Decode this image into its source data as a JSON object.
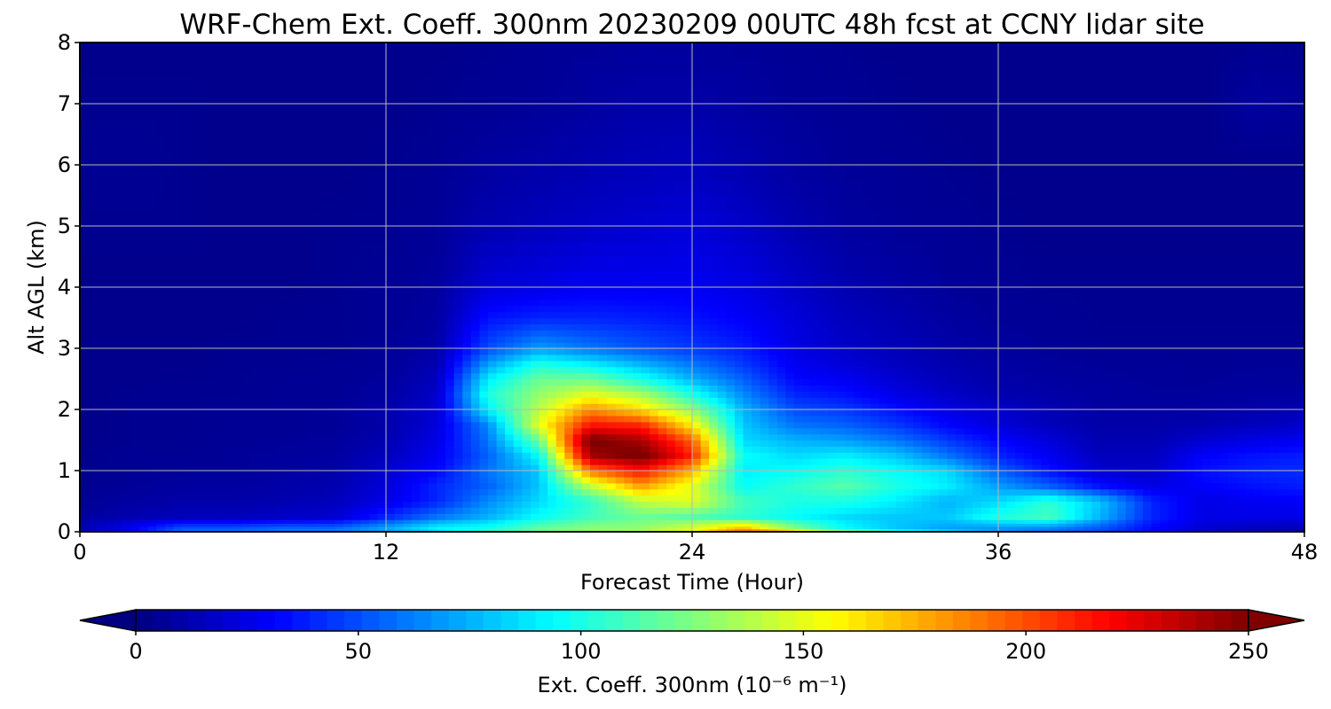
{
  "chart_data": {
    "type": "heatmap",
    "title": "WRF-Chem Ext. Coeff. 300nm  20230209 00UTC 48h fcst at CCNY lidar site",
    "xlabel": "Forecast Time (Hour)",
    "ylabel": "Alt AGL (km)",
    "xlim": [
      0,
      48
    ],
    "ylim": [
      0,
      8
    ],
    "x_ticks": [
      "0",
      "12",
      "24",
      "36",
      "48"
    ],
    "y_ticks": [
      "0",
      "1",
      "2",
      "3",
      "4",
      "5",
      "6",
      "7",
      "8"
    ],
    "grid": true,
    "colormap": "jet",
    "colorbar": {
      "label": "Ext. Coeff. 300nm  (10⁻⁶ m⁻¹)",
      "range": [
        0,
        250
      ],
      "ticks": [
        "0",
        "50",
        "100",
        "150",
        "200",
        "250"
      ],
      "extend": "both",
      "placement": "bottom"
    },
    "x_hours": [
      0,
      2,
      4,
      6,
      8,
      10,
      12,
      14,
      16,
      18,
      20,
      22,
      24,
      26,
      28,
      30,
      32,
      34,
      36,
      38,
      40,
      42,
      44,
      46,
      48
    ],
    "y_km": [
      0,
      0.05,
      0.25,
      0.5,
      0.75,
      1.0,
      1.25,
      1.5,
      1.75,
      2.0,
      2.25,
      2.5,
      2.75,
      3.0,
      3.5,
      4.0,
      5.0,
      6.0,
      7.0,
      8.0
    ],
    "values": [
      [
        15,
        20,
        60,
        60,
        60,
        60,
        60,
        70,
        110,
        120,
        130,
        150,
        160,
        215,
        235,
        185,
        135,
        110,
        80,
        60,
        50,
        35,
        20,
        15,
        10
      ],
      [
        12,
        30,
        55,
        55,
        60,
        60,
        75,
        95,
        100,
        120,
        130,
        130,
        150,
        180,
        130,
        95,
        80,
        70,
        65,
        60,
        50,
        32,
        20,
        15,
        12
      ],
      [
        8,
        12,
        15,
        15,
        18,
        20,
        40,
        60,
        75,
        95,
        110,
        120,
        115,
        105,
        95,
        85,
        80,
        80,
        100,
        110,
        75,
        40,
        25,
        25,
        25
      ],
      [
        5,
        8,
        10,
        10,
        12,
        15,
        25,
        40,
        65,
        85,
        105,
        140,
        150,
        110,
        100,
        100,
        90,
        75,
        85,
        105,
        80,
        40,
        25,
        28,
        30
      ],
      [
        4,
        6,
        8,
        8,
        10,
        12,
        22,
        40,
        55,
        80,
        140,
        180,
        150,
        95,
        105,
        115,
        100,
        90,
        70,
        55,
        35,
        25,
        30,
        35,
        38
      ],
      [
        4,
        5,
        6,
        6,
        8,
        10,
        20,
        32,
        60,
        80,
        190,
        215,
        175,
        90,
        95,
        105,
        95,
        85,
        55,
        35,
        20,
        18,
        35,
        40,
        42
      ],
      [
        3,
        5,
        5,
        6,
        7,
        8,
        15,
        28,
        55,
        95,
        240,
        255,
        210,
        95,
        85,
        90,
        80,
        60,
        40,
        28,
        15,
        15,
        30,
        35,
        38
      ],
      [
        3,
        4,
        4,
        5,
        6,
        7,
        12,
        25,
        60,
        120,
        255,
        240,
        195,
        85,
        75,
        70,
        60,
        45,
        32,
        22,
        12,
        12,
        20,
        25,
        28
      ],
      [
        3,
        4,
        4,
        5,
        5,
        6,
        10,
        22,
        65,
        150,
        215,
        210,
        160,
        80,
        60,
        55,
        45,
        32,
        22,
        15,
        10,
        10,
        12,
        15,
        18
      ],
      [
        3,
        4,
        4,
        5,
        5,
        6,
        10,
        20,
        90,
        140,
        185,
        165,
        130,
        75,
        50,
        45,
        35,
        25,
        18,
        12,
        8,
        8,
        8,
        10,
        12
      ],
      [
        3,
        4,
        4,
        4,
        5,
        5,
        8,
        18,
        100,
        130,
        150,
        135,
        100,
        65,
        40,
        35,
        25,
        18,
        12,
        10,
        8,
        7,
        7,
        8,
        8
      ],
      [
        3,
        3,
        4,
        4,
        5,
        5,
        7,
        15,
        90,
        120,
        120,
        100,
        75,
        55,
        32,
        28,
        20,
        14,
        10,
        8,
        7,
        6,
        6,
        7,
        7
      ],
      [
        3,
        3,
        3,
        4,
        4,
        5,
        6,
        12,
        70,
        100,
        90,
        75,
        60,
        45,
        28,
        22,
        16,
        12,
        9,
        7,
        6,
        6,
        5,
        6,
        6
      ],
      [
        3,
        3,
        3,
        4,
        4,
        4,
        6,
        10,
        50,
        70,
        60,
        52,
        45,
        38,
        25,
        18,
        14,
        10,
        8,
        6,
        5,
        5,
        5,
        5,
        5
      ],
      [
        3,
        3,
        3,
        3,
        4,
        4,
        5,
        8,
        35,
        40,
        40,
        38,
        35,
        30,
        22,
        15,
        12,
        8,
        6,
        5,
        4,
        4,
        4,
        4,
        4
      ],
      [
        3,
        3,
        3,
        3,
        3,
        4,
        5,
        7,
        22,
        25,
        28,
        28,
        28,
        25,
        18,
        12,
        9,
        6,
        5,
        4,
        4,
        4,
        4,
        4,
        4
      ],
      [
        4,
        4,
        4,
        3,
        3,
        4,
        4,
        6,
        12,
        15,
        18,
        20,
        22,
        18,
        12,
        8,
        6,
        5,
        4,
        3,
        3,
        3,
        3,
        3,
        3
      ],
      [
        5,
        5,
        4,
        3,
        3,
        3,
        4,
        5,
        8,
        10,
        12,
        14,
        15,
        12,
        8,
        6,
        5,
        4,
        3,
        3,
        3,
        3,
        3,
        3,
        3
      ],
      [
        4,
        4,
        4,
        3,
        3,
        3,
        3,
        4,
        5,
        6,
        8,
        10,
        10,
        8,
        6,
        5,
        4,
        3,
        3,
        3,
        3,
        3,
        3,
        8,
        6
      ],
      [
        3,
        3,
        3,
        3,
        3,
        3,
        3,
        3,
        4,
        5,
        6,
        7,
        7,
        6,
        5,
        4,
        3,
        3,
        3,
        3,
        3,
        3,
        3,
        4,
        4
      ]
    ]
  }
}
